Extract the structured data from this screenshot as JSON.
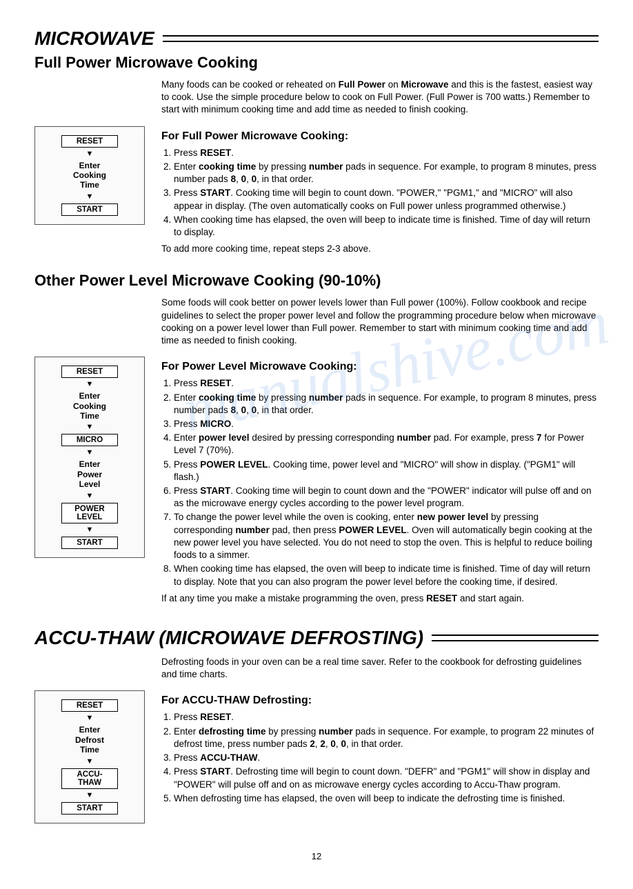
{
  "watermark": "manualshive.com",
  "pagenum": "12",
  "sec1": {
    "title": "MICROWAVE",
    "subtitle": "Full Power Microwave Cooking",
    "intro_html": "Many foods can be cooked or reheated on <b>Full Power</b> on <b>Microwave</b> and this is the fastest, easiest way to cook. Use the simple procedure below to cook on Full Power. (Full Power is 700 watts.) Remember to start with minimum cooking time and add time as needed to finish cooking.",
    "h3": "For Full Power Microwave Cooking:",
    "steps_html": [
      "Press <b>RESET</b>.",
      "Enter <b>cooking time</b> by pressing <b>number</b> pads in sequence. For example, to program 8 minutes, press number pads <b>8</b>, <b>0</b>, <b>0</b>, in that order.",
      "Press <b>START</b>. Cooking time will begin to count down. \"POWER,\" \"PGM1,\" and \"MICRO\" will also appear in display. (The oven automatically cooks on Full power unless programmed otherwise.)",
      "When cooking time has elapsed, the oven will beep to indicate time is finished. Time of day will return to display."
    ],
    "postnote": "To add more cooking time, repeat steps 2-3 above.",
    "flow": [
      "RESET",
      "▼",
      "Enter\nCooking\nTime",
      "▼",
      "START"
    ]
  },
  "sec2": {
    "subtitle": "Other Power Level Microwave Cooking (90-10%)",
    "intro_html": "Some foods will cook better on power levels lower than Full power (100%). Follow cookbook and recipe guidelines to select the proper power level and follow the programming procedure below when microwave cooking on a power level lower than Full power. Remember to start with minimum cooking time and add time as needed to finish cooking.",
    "h3": "For Power Level Microwave Cooking:",
    "steps_html": [
      "Press <b>RESET</b>.",
      "Enter <b>cooking time</b> by pressing <b>number</b> pads in sequence. For example, to program 8 minutes, press number pads <b>8</b>, <b>0</b>, <b>0</b>, in that order.",
      "Press <b>MICRO</b>.",
      "Enter <b>power level</b> desired by pressing corresponding <b>number</b> pad. For example, press <b>7</b> for Power Level 7 (70%).",
      "Press <b>POWER LEVEL</b>. Cooking time, power level and \"MICRO\" will show in display. (\"PGM1\" will flash.)",
      "Press <b>START</b>. Cooking time will begin to count down and the \"POWER\" indicator will pulse off and on as the microwave energy cycles according to the power level program.",
      "To change the power level while the oven is cooking, enter <b>new power level</b> by pressing corresponding <b>number</b> pad, then press <b>POWER LEVEL</b>. Oven will automatically begin cooking at the new power level you have selected. You do not need to stop the oven. This is helpful to reduce boiling foods to a simmer.",
      "When cooking time has elapsed, the oven will beep to indicate time is finished. Time of day will return to display. Note that you can also program the power level before the cooking time, if desired."
    ],
    "postnote_html": "If at any time you make a mistake programming the oven, press <b>RESET</b> and start again.",
    "flow": [
      "RESET",
      "▼",
      "Enter\nCooking\nTime",
      "▼",
      "MICRO",
      "▼",
      "Enter\nPower\nLevel",
      "▼",
      "POWER\nLEVEL",
      "▼",
      "START"
    ]
  },
  "sec3": {
    "title": "ACCU-THAW (MICROWAVE DEFROSTING)",
    "intro": "Defrosting foods in your oven can be a real time saver. Refer to the cookbook for defrosting guidelines and time charts.",
    "h3": "For ACCU-THAW Defrosting:",
    "steps_html": [
      "Press <b>RESET</b>.",
      "Enter <b>defrosting time</b> by pressing <b>number</b> pads in sequence. For example, to program 22 minutes of defrost time, press number pads <b>2</b>, <b>2</b>, <b>0</b>, <b>0</b>, in that order.",
      "Press <b>ACCU-THAW</b>.",
      "Press <b>START</b>. Defrosting time will begin to count down. \"DEFR\" and \"PGM1\" will show in display and \"POWER\" will pulse off and on as microwave energy cycles according to Accu-Thaw program.",
      "When defrosting time has elapsed, the oven will beep to indicate the defrosting time is finished."
    ],
    "flow": [
      "RESET",
      "▼",
      "Enter\nDefrost\nTime",
      "▼",
      "ACCU-\nTHAW",
      "▼",
      "START"
    ]
  },
  "flow_buttons": [
    "RESET",
    "START",
    "MICRO",
    "POWER\nLEVEL",
    "ACCU-\nTHAW"
  ]
}
